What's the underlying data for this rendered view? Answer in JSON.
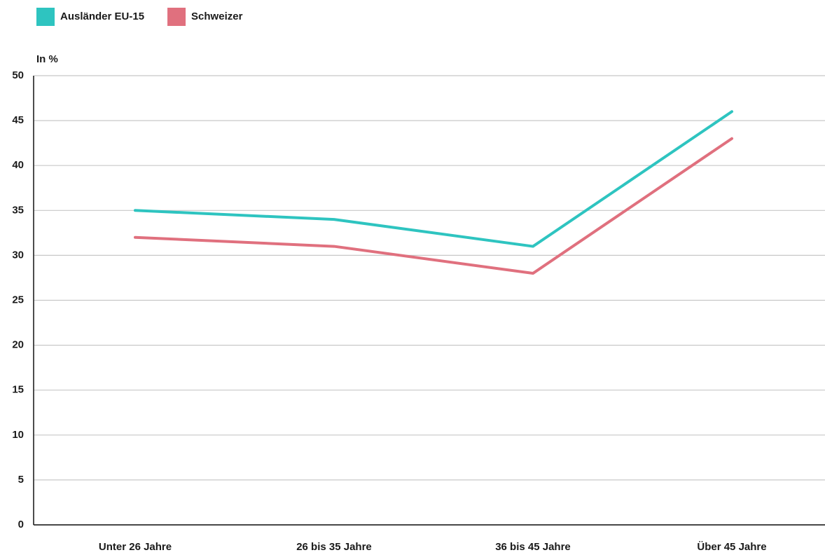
{
  "chart_data": {
    "type": "line",
    "y_label": "In %",
    "categories": [
      "Unter 26 Jahre",
      "26 bis 35 Jahre",
      "36 bis 45 Jahre",
      "Über 45 Jahre"
    ],
    "series": [
      {
        "name": "Ausländer EU-15",
        "color": "#2ec4c0",
        "values": [
          35,
          34,
          31,
          46
        ]
      },
      {
        "name": "Schweizer",
        "color": "#e0707e",
        "values": [
          32,
          31,
          28,
          43
        ]
      }
    ],
    "ylim": [
      0,
      50
    ],
    "yticks": [
      0,
      5,
      10,
      15,
      20,
      25,
      30,
      35,
      40,
      45,
      50
    ],
    "grid": true,
    "legend": "top-left"
  }
}
